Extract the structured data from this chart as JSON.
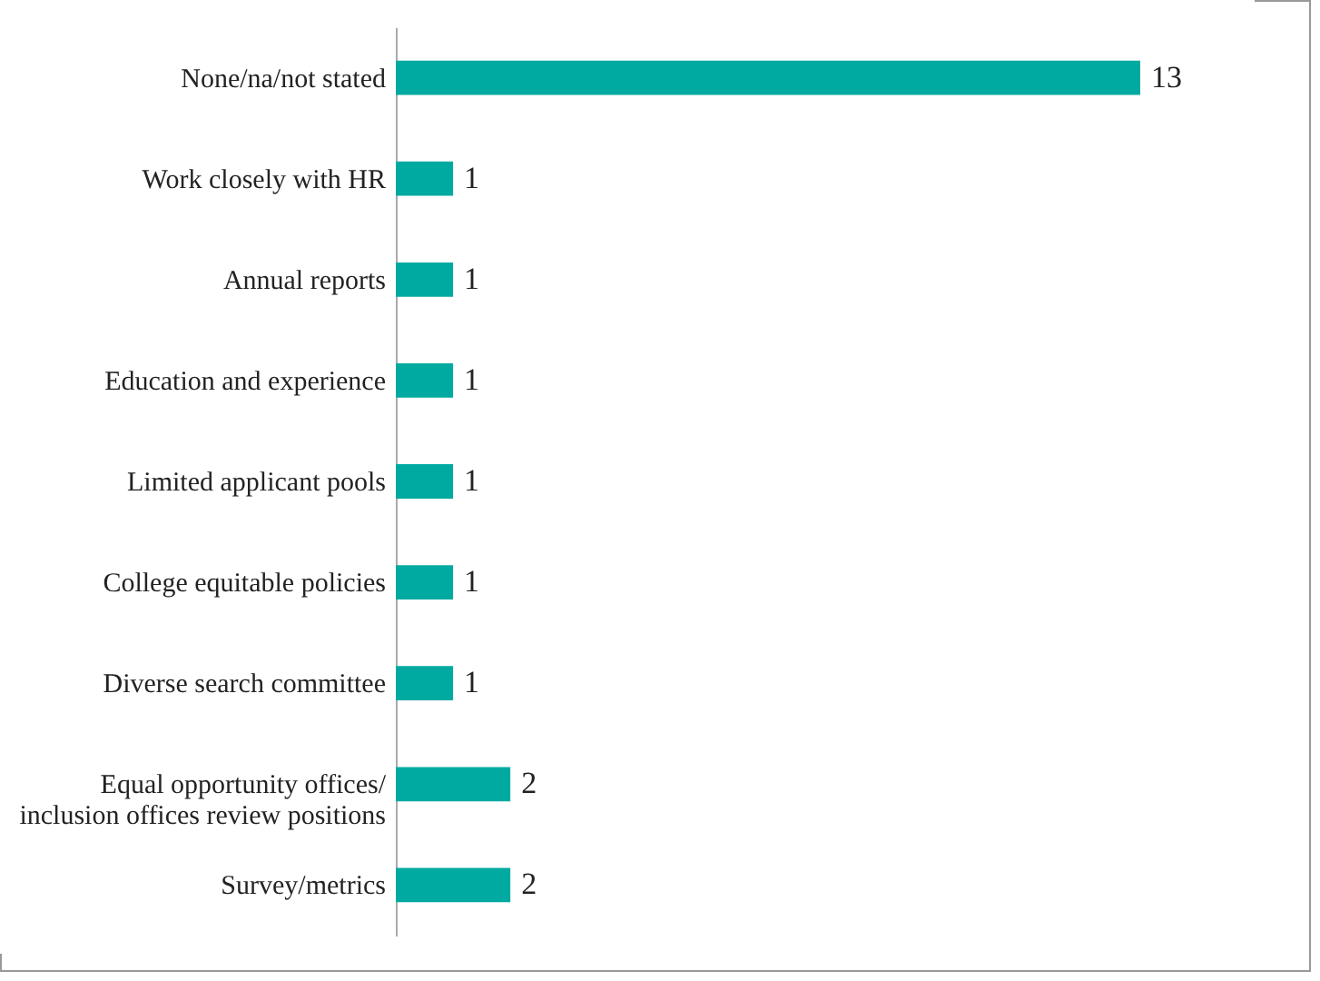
{
  "chart_data": {
    "type": "bar",
    "orientation": "horizontal",
    "categories": [
      "None/na/not stated",
      "Work closely with HR",
      "Annual reports",
      "Education and experience",
      "Limited applicant pools",
      "College equitable policies",
      "Diverse search committee",
      "Equal opportunity offices/ inclusion offices review positions",
      "Survey/metrics"
    ],
    "values": [
      13,
      1,
      1,
      1,
      1,
      1,
      1,
      2,
      2
    ],
    "color": "#00aaa0",
    "data_labels": true
  }
}
